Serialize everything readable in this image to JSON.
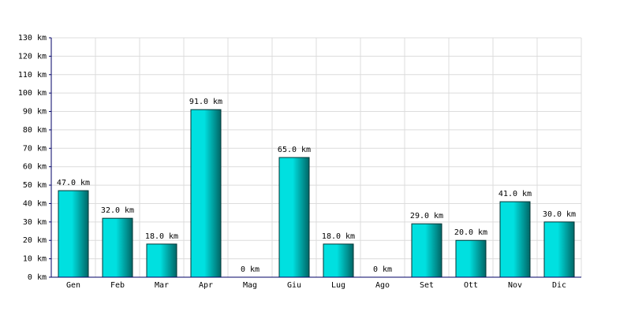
{
  "chart_data": {
    "type": "bar",
    "categories": [
      "Gen",
      "Feb",
      "Mar",
      "Apr",
      "Mag",
      "Giu",
      "Lug",
      "Ago",
      "Set",
      "Ott",
      "Nov",
      "Dic"
    ],
    "values": [
      47,
      32,
      18,
      91,
      0,
      65,
      18,
      0,
      29,
      20,
      41,
      30
    ],
    "value_labels": [
      "47.0 km",
      "32.0 km",
      "18.0 km",
      "91.0 km",
      "0 km",
      "65.0 km",
      "18.0 km",
      "0 km",
      "29.0 km",
      "20.0 km",
      "41.0 km",
      "30.0 km"
    ],
    "color": "#00e0e0",
    "ylim": [
      0,
      130
    ],
    "yticks": [
      {
        "value": 0,
        "label": "0 km"
      },
      {
        "value": 10,
        "label": "10 km"
      },
      {
        "value": 20,
        "label": "20 km"
      },
      {
        "value": 30,
        "label": "30 km"
      },
      {
        "value": 40,
        "label": "40 km"
      },
      {
        "value": 50,
        "label": "50 km"
      },
      {
        "value": 60,
        "label": "60 km"
      },
      {
        "value": 70,
        "label": "70 km"
      },
      {
        "value": 80,
        "label": "80 km"
      },
      {
        "value": 90,
        "label": "90 km"
      },
      {
        "value": 100,
        "label": "100 km"
      },
      {
        "value": 110,
        "label": "110 km"
      },
      {
        "value": 120,
        "label": "120 km"
      },
      {
        "value": 130,
        "label": "130 km"
      }
    ],
    "grid": true
  }
}
